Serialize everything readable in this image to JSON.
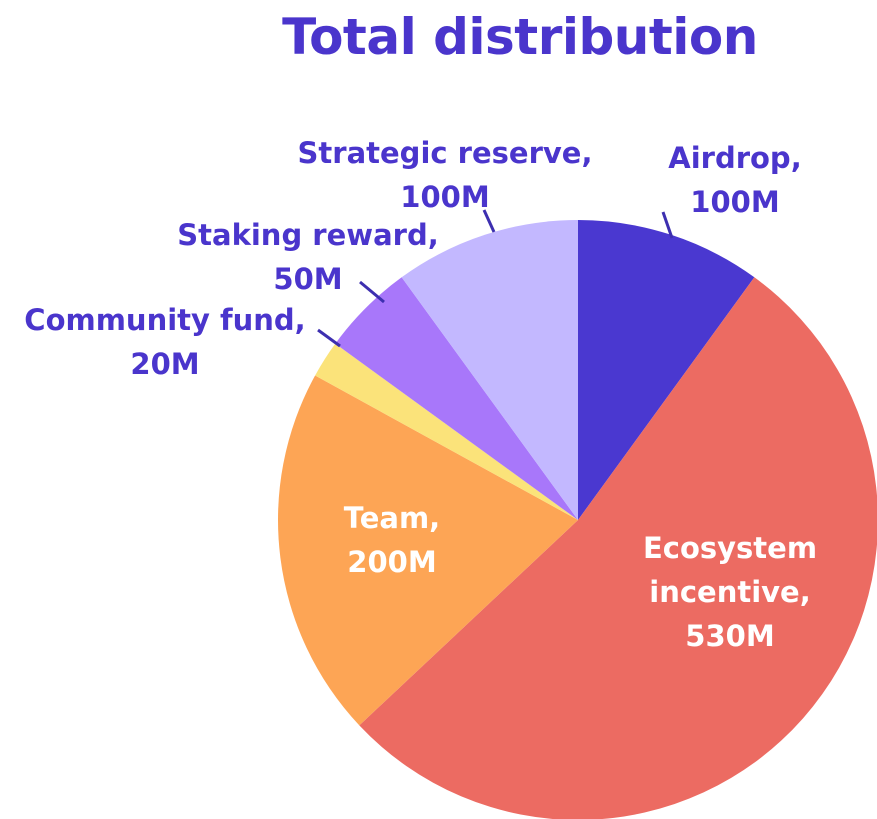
{
  "chart_data": {
    "type": "pie",
    "title": "Total distribution",
    "start_angle_deg": 0,
    "direction": "clockwise",
    "slices": [
      {
        "label_line1": "Airdrop,",
        "label_line2": "100M",
        "value": 100,
        "color": "#4a38d0",
        "label_color": "#4a35cc",
        "label_inside": false
      },
      {
        "label_line1": "Ecosystem",
        "label_line2": "incentive,",
        "label_line3": "530M",
        "value": 530,
        "color": "#ec6b62",
        "label_color": "#ffffff",
        "label_inside": true
      },
      {
        "label_line1": "Team,",
        "label_line2": "200M",
        "value": 200,
        "color": "#fda555",
        "label_color": "#ffffff",
        "label_inside": true
      },
      {
        "label_line1": "Community fund,",
        "label_line2": "20M",
        "value": 20,
        "color": "#fbe37a",
        "label_color": "#4a35cc",
        "label_inside": false
      },
      {
        "label_line1": "Staking reward,",
        "label_line2": "50M",
        "value": 50,
        "color": "#a877fa",
        "label_color": "#4a35cc",
        "label_inside": false
      },
      {
        "label_line1": "Strategic reserve,",
        "label_line2": "100M",
        "value": 100,
        "color": "#c3b8ff",
        "label_color": "#4a35cc",
        "label_inside": false
      }
    ]
  }
}
